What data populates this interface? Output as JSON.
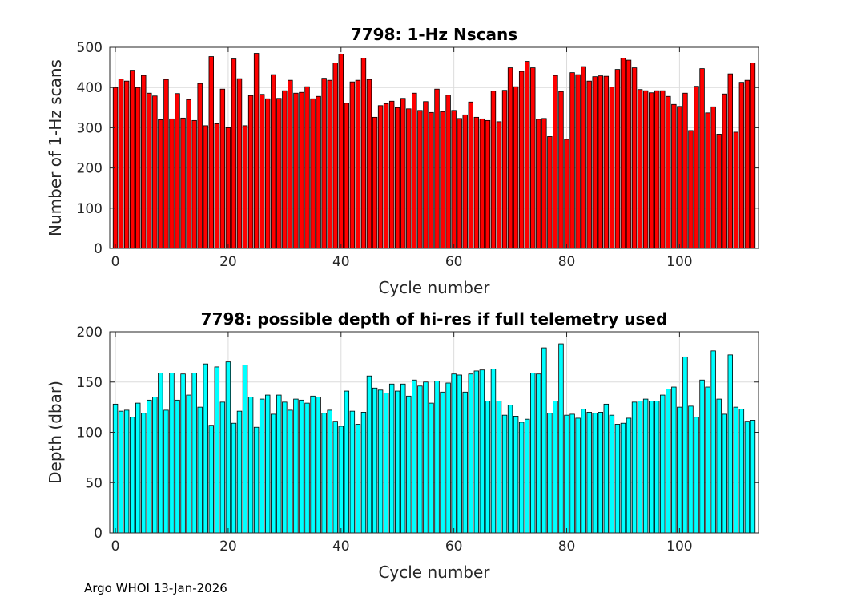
{
  "footer": "Argo WHOI 13-Jan-2026",
  "chart_data": [
    {
      "type": "bar",
      "title": "7798: 1-Hz Nscans",
      "xlabel": "Cycle number",
      "ylabel": "Number of 1-Hz scans",
      "xlim": [
        -1,
        114
      ],
      "ylim": [
        0,
        500
      ],
      "xticks": [
        0,
        20,
        40,
        60,
        80,
        100
      ],
      "yticks": [
        0,
        100,
        200,
        300,
        400,
        500
      ],
      "grid": true,
      "bar_color": "#ff0000",
      "x": [
        0,
        1,
        2,
        3,
        4,
        5,
        6,
        7,
        8,
        9,
        10,
        11,
        12,
        13,
        14,
        15,
        16,
        17,
        18,
        19,
        20,
        21,
        22,
        23,
        24,
        25,
        26,
        27,
        28,
        29,
        30,
        31,
        32,
        33,
        34,
        35,
        36,
        37,
        38,
        39,
        40,
        41,
        42,
        43,
        44,
        45,
        46,
        47,
        48,
        49,
        50,
        51,
        52,
        53,
        54,
        55,
        56,
        57,
        58,
        59,
        60,
        61,
        62,
        63,
        64,
        65,
        66,
        67,
        68,
        69,
        70,
        71,
        72,
        73,
        74,
        75,
        76,
        77,
        78,
        79,
        80,
        81,
        82,
        83,
        84,
        85,
        86,
        87,
        88,
        89,
        90,
        91,
        92,
        93,
        94,
        95,
        96,
        97,
        98,
        99,
        100,
        101,
        102,
        103,
        104,
        105,
        106,
        107,
        108,
        109,
        110,
        111,
        112,
        113
      ],
      "values": [
        400,
        421,
        416,
        443,
        400,
        430,
        386,
        379,
        320,
        420,
        322,
        385,
        324,
        370,
        318,
        410,
        305,
        477,
        310,
        396,
        300,
        471,
        422,
        305,
        380,
        485,
        383,
        372,
        432,
        373,
        392,
        418,
        386,
        388,
        402,
        372,
        378,
        423,
        418,
        461,
        483,
        361,
        414,
        418,
        473,
        420,
        326,
        355,
        360,
        366,
        350,
        373,
        347,
        386,
        343,
        365,
        338,
        396,
        340,
        381,
        343,
        323,
        332,
        364,
        326,
        322,
        318,
        391,
        315,
        393,
        449,
        402,
        440,
        465,
        449,
        321,
        323,
        278,
        430,
        390,
        271,
        437,
        432,
        452,
        416,
        427,
        429,
        428,
        401,
        445,
        473,
        468,
        449,
        395,
        392,
        387,
        392,
        392,
        378,
        358,
        353,
        386,
        293,
        403,
        447,
        337,
        352,
        284,
        384,
        434,
        289,
        413,
        418,
        461
      ]
    },
    {
      "type": "bar",
      "title": "7798: possible depth of hi-res if full telemetry used",
      "xlabel": "Cycle number",
      "ylabel": "Depth (dbar)",
      "xlim": [
        -1,
        114
      ],
      "ylim": [
        0,
        200
      ],
      "xticks": [
        0,
        20,
        40,
        60,
        80,
        100
      ],
      "yticks": [
        0,
        50,
        100,
        150,
        200
      ],
      "grid": true,
      "bar_color": "#00ffff",
      "x": [
        0,
        1,
        2,
        3,
        4,
        5,
        6,
        7,
        8,
        9,
        10,
        11,
        12,
        13,
        14,
        15,
        16,
        17,
        18,
        19,
        20,
        21,
        22,
        23,
        24,
        25,
        26,
        27,
        28,
        29,
        30,
        31,
        32,
        33,
        34,
        35,
        36,
        37,
        38,
        39,
        40,
        41,
        42,
        43,
        44,
        45,
        46,
        47,
        48,
        49,
        50,
        51,
        52,
        53,
        54,
        55,
        56,
        57,
        58,
        59,
        60,
        61,
        62,
        63,
        64,
        65,
        66,
        67,
        68,
        69,
        70,
        71,
        72,
        73,
        74,
        75,
        76,
        77,
        78,
        79,
        80,
        81,
        82,
        83,
        84,
        85,
        86,
        87,
        88,
        89,
        90,
        91,
        92,
        93,
        94,
        95,
        96,
        97,
        98,
        99,
        100,
        101,
        102,
        103,
        104,
        105,
        106,
        107,
        108,
        109,
        110,
        111,
        112,
        113
      ],
      "values": [
        128,
        121,
        122,
        115,
        129,
        119,
        132,
        135,
        159,
        122,
        159,
        132,
        158,
        137,
        159,
        125,
        168,
        107,
        165,
        130,
        170,
        109,
        121,
        167,
        135,
        105,
        133,
        137,
        118,
        137,
        130,
        122,
        133,
        132,
        129,
        136,
        135,
        119,
        122,
        111,
        106,
        141,
        121,
        108,
        120,
        156,
        144,
        142,
        139,
        148,
        141,
        148,
        136,
        152,
        146,
        150,
        129,
        151,
        140,
        149,
        158,
        157,
        140,
        158,
        161,
        162,
        131,
        163,
        131,
        117,
        127,
        116,
        110,
        113,
        159,
        158,
        184,
        119,
        131,
        188,
        117,
        118,
        114,
        123,
        120,
        119,
        120,
        128,
        117,
        108,
        109,
        114,
        130,
        131,
        133,
        131,
        131,
        137,
        143,
        145,
        125,
        175,
        126,
        115,
        152,
        145,
        181,
        133,
        118,
        177,
        125,
        123,
        111,
        112
      ]
    }
  ]
}
